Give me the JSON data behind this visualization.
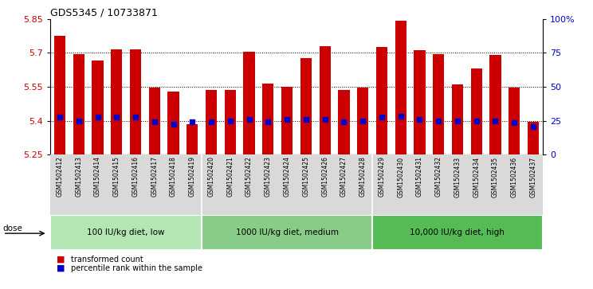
{
  "title": "GDS5345 / 10733871",
  "samples": [
    "GSM1502412",
    "GSM1502413",
    "GSM1502414",
    "GSM1502415",
    "GSM1502416",
    "GSM1502417",
    "GSM1502418",
    "GSM1502419",
    "GSM1502420",
    "GSM1502421",
    "GSM1502422",
    "GSM1502423",
    "GSM1502424",
    "GSM1502425",
    "GSM1502426",
    "GSM1502427",
    "GSM1502428",
    "GSM1502429",
    "GSM1502430",
    "GSM1502431",
    "GSM1502432",
    "GSM1502433",
    "GSM1502434",
    "GSM1502435",
    "GSM1502436",
    "GSM1502437"
  ],
  "bar_values": [
    5.775,
    5.695,
    5.665,
    5.715,
    5.715,
    5.545,
    5.53,
    5.385,
    5.535,
    5.535,
    5.705,
    5.565,
    5.55,
    5.675,
    5.73,
    5.535,
    5.545,
    5.725,
    5.84,
    5.71,
    5.695,
    5.56,
    5.63,
    5.69,
    5.545,
    5.395
  ],
  "percentile_values": [
    5.415,
    5.4,
    5.415,
    5.415,
    5.415,
    5.395,
    5.385,
    5.395,
    5.395,
    5.4,
    5.405,
    5.395,
    5.405,
    5.405,
    5.405,
    5.395,
    5.4,
    5.415,
    5.42,
    5.405,
    5.4,
    5.4,
    5.4,
    5.4,
    5.39,
    5.375
  ],
  "ymin": 5.25,
  "ymax": 5.85,
  "yticks": [
    5.25,
    5.4,
    5.55,
    5.7,
    5.85
  ],
  "ytick_labels": [
    "5.25",
    "5.4",
    "5.55",
    "5.7",
    "5.85"
  ],
  "right_yticks": [
    0,
    25,
    50,
    75,
    100
  ],
  "right_ytick_labels": [
    "0",
    "25",
    "50",
    "75",
    "100%"
  ],
  "bar_color": "#cc0000",
  "dot_color": "#0000cc",
  "groups": [
    {
      "label": "100 IU/kg diet, low",
      "start": 0,
      "end": 8
    },
    {
      "label": "1000 IU/kg diet, medium",
      "start": 8,
      "end": 17
    },
    {
      "label": "10,000 IU/kg diet, high",
      "start": 17,
      "end": 26
    }
  ],
  "group_colors": [
    "#b3e6b3",
    "#88cc88",
    "#55bb55"
  ],
  "legend_items": [
    {
      "label": "transformed count",
      "color": "#cc0000"
    },
    {
      "label": "percentile rank within the sample",
      "color": "#0000cc"
    }
  ],
  "bar_width": 0.6,
  "xlabel_label_bg": "#d9d9d9"
}
